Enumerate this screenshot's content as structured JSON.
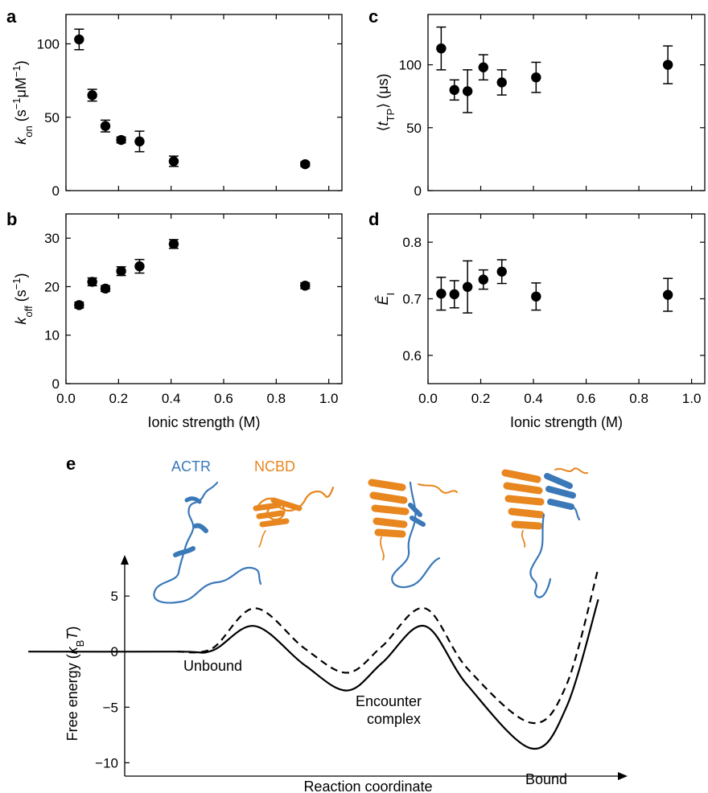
{
  "panels": {
    "a": "a",
    "b": "b",
    "c": "c",
    "d": "d",
    "e": "e"
  },
  "chart_data": [
    {
      "id": "a",
      "type": "scatter",
      "ylabel": "k_on (s^-1 μM^-1)",
      "xlabel": "",
      "xlim": [
        0,
        1.05
      ],
      "ylim": [
        0,
        120
      ],
      "yticks": [
        0,
        50,
        100
      ],
      "xticks": [
        0.0,
        0.2,
        0.4,
        0.6,
        0.8,
        1.0
      ],
      "show_xticklabels": false,
      "points": [
        {
          "x": 0.05,
          "y": 103,
          "err": 7
        },
        {
          "x": 0.1,
          "y": 65,
          "err": 4
        },
        {
          "x": 0.15,
          "y": 44,
          "err": 4
        },
        {
          "x": 0.21,
          "y": 34.5,
          "err": 2
        },
        {
          "x": 0.28,
          "y": 33.5,
          "err": 7
        },
        {
          "x": 0.41,
          "y": 20,
          "err": 3.5
        },
        {
          "x": 0.91,
          "y": 18,
          "err": 1.5
        }
      ]
    },
    {
      "id": "b",
      "type": "scatter",
      "ylabel": "k_off (s^-1)",
      "xlabel": "Ionic strength (M)",
      "xlim": [
        0,
        1.05
      ],
      "ylim": [
        0,
        35
      ],
      "yticks": [
        0,
        10,
        20,
        30
      ],
      "xticks": [
        0.0,
        0.2,
        0.4,
        0.6,
        0.8,
        1.0
      ],
      "xticklabels": [
        "0.0",
        "0.2",
        "0.4",
        "0.6",
        "0.8",
        "1.0"
      ],
      "show_xticklabels": true,
      "points": [
        {
          "x": 0.05,
          "y": 16.2,
          "err": 0.6
        },
        {
          "x": 0.1,
          "y": 21,
          "err": 0.8
        },
        {
          "x": 0.15,
          "y": 19.6,
          "err": 0.6
        },
        {
          "x": 0.21,
          "y": 23.2,
          "err": 0.9
        },
        {
          "x": 0.28,
          "y": 24.2,
          "err": 1.4
        },
        {
          "x": 0.41,
          "y": 28.8,
          "err": 0.9
        },
        {
          "x": 0.91,
          "y": 20.2,
          "err": 0.6
        }
      ]
    },
    {
      "id": "c",
      "type": "scatter",
      "ylabel": "⟨t_TP⟩ (μs)",
      "xlabel": "",
      "xlim": [
        0,
        1.05
      ],
      "ylim": [
        0,
        140
      ],
      "yticks": [
        0,
        50,
        100
      ],
      "xticks": [
        0.0,
        0.2,
        0.4,
        0.6,
        0.8,
        1.0
      ],
      "show_xticklabels": false,
      "points": [
        {
          "x": 0.05,
          "y": 113,
          "err": 17
        },
        {
          "x": 0.1,
          "y": 80,
          "err": 8
        },
        {
          "x": 0.15,
          "y": 79,
          "err": 17
        },
        {
          "x": 0.21,
          "y": 98,
          "err": 10
        },
        {
          "x": 0.28,
          "y": 86,
          "err": 10
        },
        {
          "x": 0.41,
          "y": 90,
          "err": 12
        },
        {
          "x": 0.91,
          "y": 100,
          "err": 15
        }
      ]
    },
    {
      "id": "d",
      "type": "scatter",
      "ylabel": "Ê_I",
      "xlabel": "Ionic strength (M)",
      "xlim": [
        0,
        1.05
      ],
      "ylim": [
        0.55,
        0.85
      ],
      "yticks": [
        0.6,
        0.7,
        0.8
      ],
      "xticks": [
        0.0,
        0.2,
        0.4,
        0.6,
        0.8,
        1.0
      ],
      "xticklabels": [
        "0.0",
        "0.2",
        "0.4",
        "0.6",
        "0.8",
        "1.0"
      ],
      "show_xticklabels": true,
      "points": [
        {
          "x": 0.05,
          "y": 0.709,
          "err": 0.029
        },
        {
          "x": 0.1,
          "y": 0.708,
          "err": 0.024
        },
        {
          "x": 0.15,
          "y": 0.721,
          "err": 0.046
        },
        {
          "x": 0.21,
          "y": 0.734,
          "err": 0.017
        },
        {
          "x": 0.28,
          "y": 0.748,
          "err": 0.021
        },
        {
          "x": 0.41,
          "y": 0.704,
          "err": 0.024
        },
        {
          "x": 0.91,
          "y": 0.707,
          "err": 0.029
        }
      ]
    },
    {
      "id": "e",
      "type": "line",
      "xlabel": "Reaction coordinate",
      "ylabel": "Free energy (k_B T)",
      "ylim": [
        -11.2,
        8.7
      ],
      "yticks": [
        -10,
        -5,
        0,
        5
      ],
      "series": [
        {
          "style": "solid",
          "points": [
            [
              0.04,
              0
            ],
            [
              0.25,
              0
            ],
            [
              0.3,
              0.1
            ],
            [
              0.36,
              2.3
            ],
            [
              0.43,
              -1.2
            ],
            [
              0.49,
              -3.5
            ],
            [
              0.54,
              -1.0
            ],
            [
              0.6,
              2.3
            ],
            [
              0.66,
              -3.0
            ],
            [
              0.75,
              -8.7
            ],
            [
              0.8,
              -5.0
            ],
            [
              0.845,
              4.7
            ]
          ]
        },
        {
          "style": "dashed",
          "points": [
            [
              0.25,
              0
            ],
            [
              0.3,
              0.3
            ],
            [
              0.36,
              3.9
            ],
            [
              0.43,
              0.3
            ],
            [
              0.49,
              -1.9
            ],
            [
              0.54,
              0.5
            ],
            [
              0.6,
              3.9
            ],
            [
              0.66,
              -1.5
            ],
            [
              0.75,
              -6.4
            ],
            [
              0.8,
              -3.0
            ],
            [
              0.845,
              7.5
            ]
          ]
        }
      ],
      "annotations": [
        "Unbound",
        "Encounter",
        "complex",
        "Bound"
      ],
      "structure_labels": {
        "actr": "ACTR",
        "ncbd": "NCBD"
      },
      "colors": {
        "actr": "#3a78b8",
        "ncbd": "#e8861f"
      }
    }
  ]
}
